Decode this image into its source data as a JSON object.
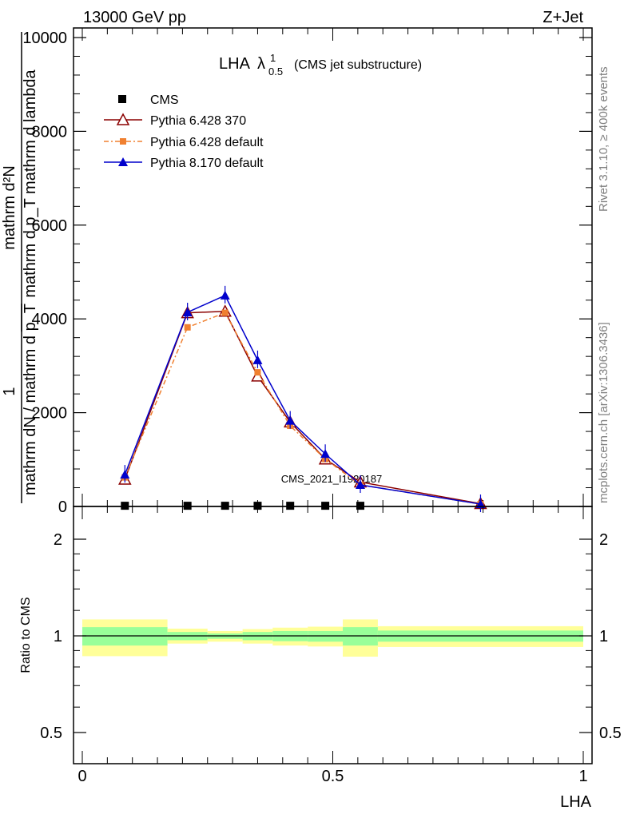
{
  "header": {
    "left": "13000 GeV pp",
    "right": "Z+Jet"
  },
  "side": {
    "rivet": "Rivet 3.1.10, ≥ 400k events",
    "mcplots": "mcplots.cern.ch [arXiv:1306.3436]"
  },
  "watermark": "CMS_2021_I1920187",
  "colors": {
    "cms": "#000000",
    "p6_370": "#8b0000",
    "p6_default": "#f08030",
    "p8_default": "#0000cc",
    "band_outer": "#ffff99",
    "band_inner": "#99ff99"
  },
  "chart_data": [
    {
      "type": "line",
      "title": "LHA",
      "title_symbol": "λ",
      "title_sub": "0.5",
      "title_sup": "1",
      "title_suffix": "(CMS jet substructure)",
      "ylabel_top": "mathrm d²N",
      "ylabel_top2": "mathrm d p_T mathrm d lambda",
      "ylabel_left_num": "1",
      "ylabel_left_den": "mathrm dN / mathrm d p_T",
      "xlim": [
        0,
        1
      ],
      "ylim": [
        0,
        10200
      ],
      "yticks": [
        0,
        2000,
        4000,
        6000,
        8000,
        10000
      ],
      "ytick_labels": [
        "0",
        "2000",
        "4000",
        "6000",
        "8000",
        "10000"
      ],
      "legend_position": "top-left",
      "x": [
        0.085,
        0.21,
        0.285,
        0.35,
        0.415,
        0.485,
        0.555,
        0.795
      ],
      "series": [
        {
          "name": "CMS",
          "marker": "square",
          "values": [
            15,
            15,
            15,
            15,
            15,
            15,
            15,
            null
          ]
        },
        {
          "name": "Pythia 6.428 370",
          "marker": "open-triangle",
          "values": [
            580,
            4130,
            4160,
            2780,
            1800,
            1010,
            520,
            60
          ]
        },
        {
          "name": "Pythia 6.428 default",
          "marker": "square",
          "values": [
            620,
            3820,
            4130,
            2860,
            1720,
            1010,
            460,
            50
          ]
        },
        {
          "name": "Pythia 8.170 default",
          "marker": "triangle",
          "values": [
            680,
            4140,
            4500,
            3120,
            1830,
            1120,
            460,
            50
          ]
        }
      ]
    },
    {
      "type": "area",
      "ylabel": "Ratio to CMS",
      "xlabel": "LHA",
      "xlim": [
        0,
        1
      ],
      "ylim": [
        0.35,
        2.25
      ],
      "yticks": [
        0.5,
        1,
        2
      ],
      "ytick_labels": [
        "0.5",
        "1",
        "2"
      ],
      "xticks": [
        0,
        0.5,
        1
      ],
      "xtick_labels": [
        "0",
        "0.5",
        "1"
      ],
      "bins": [
        {
          "lo": 0.0,
          "hi": 0.17,
          "outer": [
            0.79,
            1.17
          ],
          "inner": [
            0.9,
            1.09
          ]
        },
        {
          "lo": 0.17,
          "hi": 0.25,
          "outer": [
            0.92,
            1.075
          ],
          "inner": [
            0.955,
            1.04
          ]
        },
        {
          "lo": 0.25,
          "hi": 0.32,
          "outer": [
            0.94,
            1.05
          ],
          "inner": [
            0.97,
            1.025
          ]
        },
        {
          "lo": 0.32,
          "hi": 0.38,
          "outer": [
            0.92,
            1.07
          ],
          "inner": [
            0.955,
            1.04
          ]
        },
        {
          "lo": 0.38,
          "hi": 0.45,
          "outer": [
            0.9,
            1.085
          ],
          "inner": [
            0.945,
            1.05
          ]
        },
        {
          "lo": 0.45,
          "hi": 0.52,
          "outer": [
            0.89,
            1.095
          ],
          "inner": [
            0.94,
            1.05
          ]
        },
        {
          "lo": 0.52,
          "hi": 0.59,
          "outer": [
            0.785,
            1.17
          ],
          "inner": [
            0.9,
            1.09
          ]
        },
        {
          "lo": 0.59,
          "hi": 1.0,
          "outer": [
            0.885,
            1.1
          ],
          "inner": [
            0.94,
            1.055
          ]
        }
      ]
    }
  ]
}
